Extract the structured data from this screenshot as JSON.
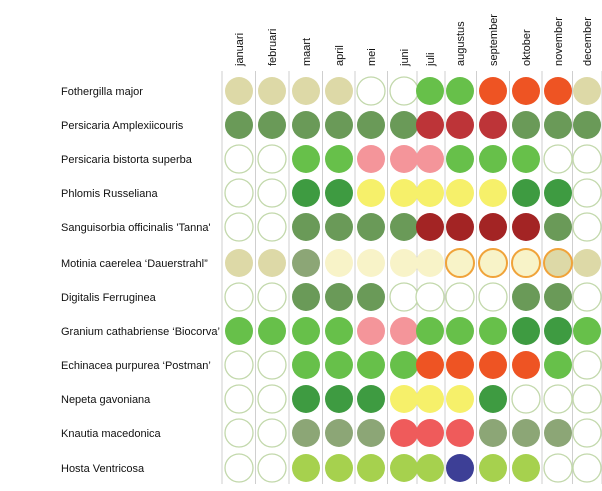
{
  "chart_data": {
    "type": "table",
    "title": "",
    "months": [
      "januari",
      "februari",
      "maart",
      "april",
      "mei",
      "juni",
      "juli",
      "augustus",
      "september",
      "oktober",
      "november",
      "december"
    ],
    "status_colors": {
      "empty": "#ffffff",
      "beige": "#ddd9a7",
      "pale_yellow": "#f8f3c8",
      "leaf_green": "#6a9a58",
      "dark_green": "#3e9b41",
      "bright_green": "#67c04a",
      "sage_green": "#8ca676",
      "lime": "#a6d14e",
      "yellow": "#f6f06a",
      "pink": "#f4959a",
      "red": "#ef5b5b",
      "crimson": "#bd3438",
      "maroon": "#a32424",
      "orange_red": "#ee5423",
      "navy": "#3d3f96"
    },
    "outline_colors": {
      "default": "#c2d8ab",
      "orange": "#f0a33a"
    },
    "plants": [
      {
        "name": "Fothergilla major",
        "months": [
          "beige",
          "beige",
          "beige",
          "beige",
          "empty",
          "empty",
          "bright_green",
          "bright_green",
          "orange_red",
          "orange_red",
          "orange_red",
          "beige"
        ],
        "outlined": []
      },
      {
        "name": "Persicaria Amplexiicouris",
        "months": [
          "leaf_green",
          "leaf_green",
          "leaf_green",
          "leaf_green",
          "leaf_green",
          "leaf_green",
          "crimson",
          "crimson",
          "crimson",
          "leaf_green",
          "leaf_green",
          "leaf_green"
        ],
        "outlined": []
      },
      {
        "name": "Persicaria bistorta superba",
        "months": [
          "empty",
          "empty",
          "bright_green",
          "bright_green",
          "pink",
          "pink",
          "pink",
          "bright_green",
          "bright_green",
          "bright_green",
          "empty",
          "empty"
        ],
        "outlined": []
      },
      {
        "name": "Phlomis Russeliana",
        "months": [
          "empty",
          "empty",
          "dark_green",
          "dark_green",
          "yellow",
          "yellow",
          "yellow",
          "yellow",
          "yellow",
          "dark_green",
          "dark_green",
          "empty"
        ],
        "outlined": []
      },
      {
        "name": "Sanguisorbia officinalis 'Tanna'",
        "months": [
          "empty",
          "empty",
          "leaf_green",
          "leaf_green",
          "leaf_green",
          "leaf_green",
          "maroon",
          "maroon",
          "maroon",
          "maroon",
          "leaf_green",
          "empty"
        ],
        "outlined": []
      },
      {
        "name": "Motinia caerelea ‘Dauerstrahl”",
        "months": [
          "beige",
          "beige",
          "sage_green",
          "pale_yellow",
          "pale_yellow",
          "pale_yellow",
          "pale_yellow",
          "pale_yellow",
          "pale_yellow",
          "pale_yellow",
          "beige",
          "beige"
        ],
        "outlined": [
          7,
          8,
          9,
          10
        ]
      },
      {
        "name": "Digitalis Ferruginea",
        "months": [
          "empty",
          "empty",
          "leaf_green",
          "leaf_green",
          "leaf_green",
          "empty",
          "empty",
          "empty",
          "empty",
          "leaf_green",
          "leaf_green",
          "empty"
        ],
        "outlined": []
      },
      {
        "name": "Granium cathabriense ‘Biocorva’",
        "months": [
          "bright_green",
          "bright_green",
          "bright_green",
          "bright_green",
          "pink",
          "pink",
          "bright_green",
          "bright_green",
          "bright_green",
          "dark_green",
          "dark_green",
          "bright_green"
        ],
        "outlined": []
      },
      {
        "name": "Echinacea purpurea ‘Postman’",
        "months": [
          "empty",
          "empty",
          "bright_green",
          "bright_green",
          "bright_green",
          "bright_green",
          "orange_red",
          "orange_red",
          "orange_red",
          "orange_red",
          "bright_green",
          "empty"
        ],
        "outlined": []
      },
      {
        "name": "Nepeta gavoniana",
        "months": [
          "empty",
          "empty",
          "dark_green",
          "dark_green",
          "dark_green",
          "yellow",
          "yellow",
          "yellow",
          "dark_green",
          "empty",
          "empty",
          "empty"
        ],
        "outlined": []
      },
      {
        "name": "Knautia macedonica",
        "months": [
          "empty",
          "empty",
          "sage_green",
          "sage_green",
          "sage_green",
          "red",
          "red",
          "red",
          "sage_green",
          "sage_green",
          "sage_green",
          "empty"
        ],
        "outlined": []
      },
      {
        "name": "Hosta Ventricosa",
        "months": [
          "empty",
          "empty",
          "lime",
          "lime",
          "lime",
          "lime",
          "lime",
          "navy",
          "lime",
          "lime",
          "empty",
          "empty"
        ],
        "outlined": []
      }
    ]
  }
}
